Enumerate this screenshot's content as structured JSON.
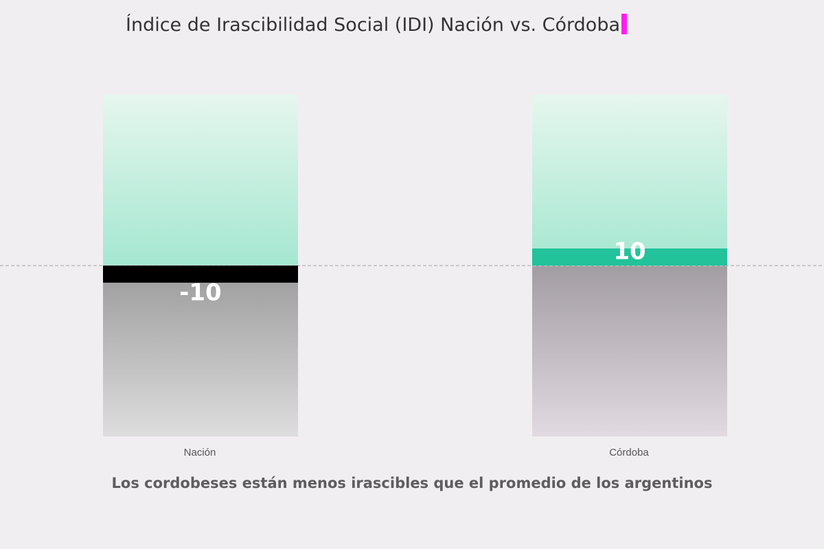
{
  "title": "Índice de Irascibilidad Social (IDI) Nación vs. Córdoba",
  "caption": "Los cordobeses están menos irascibles que el promedio de los argentinos",
  "colors": {
    "background": "#f1eef1",
    "positive_band": "#a7e8d2",
    "positive_bar": "#22c29a",
    "negative_bar": "#000000",
    "negative_band_nacion": "#9d9d9d",
    "negative_band_cordoba": "#a39ea3",
    "baseline": "#c8c8c8"
  },
  "chart_data": {
    "type": "bar",
    "categories": [
      "Nación",
      "Córdoba"
    ],
    "values": [
      -10,
      10
    ],
    "data_labels": [
      "-10",
      "10"
    ],
    "ylim": [
      -100,
      100
    ],
    "baseline": 0,
    "grid": false,
    "title": "Índice de Irascibilidad Social (IDI) Nación vs. Córdoba",
    "xlabel": "",
    "ylabel": ""
  }
}
